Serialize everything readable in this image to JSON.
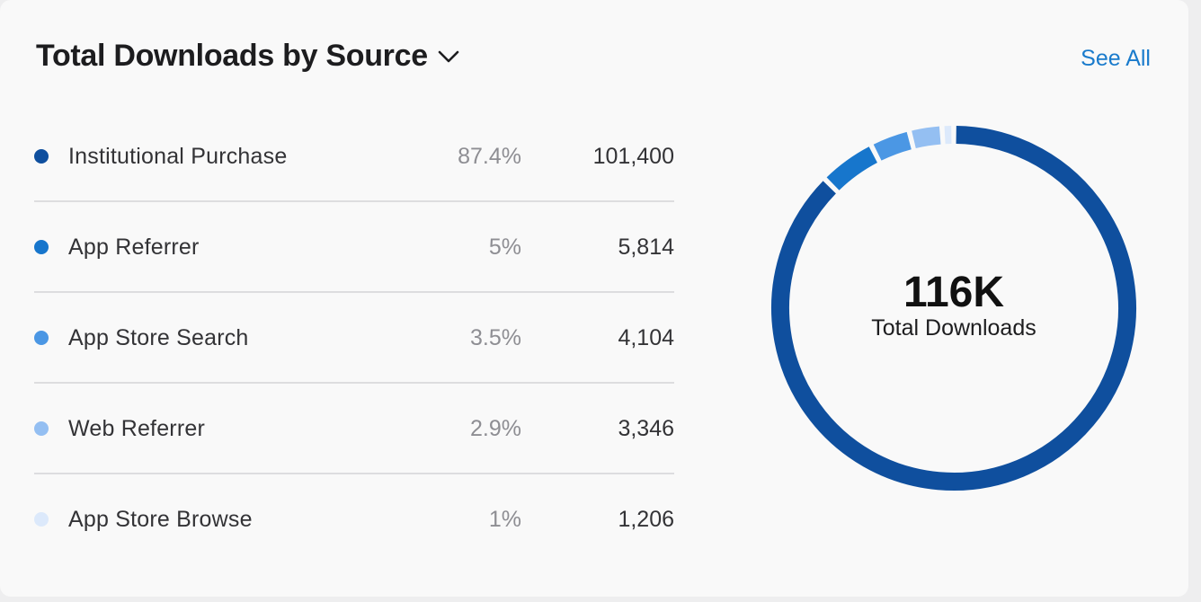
{
  "header": {
    "title": "Total Downloads by Source",
    "see_all": "See All"
  },
  "center": {
    "total": "116K",
    "label": "Total Downloads"
  },
  "colors": {
    "accent": "#1a7bcc"
  },
  "chart_data": {
    "type": "pie",
    "title": "Total Downloads by Source",
    "center_value": "116K",
    "center_label": "Total Downloads",
    "categories": [
      "Institutional Purchase",
      "App Referrer",
      "App Store Search",
      "Web Referrer",
      "App Store Browse"
    ],
    "percent_labels": [
      "87.4%",
      "5%",
      "3.5%",
      "2.9%",
      "1%"
    ],
    "value_labels": [
      "101,400",
      "5,814",
      "4,104",
      "3,346",
      "1,206"
    ],
    "values": [
      101400,
      5814,
      4104,
      3346,
      1206
    ],
    "colors": [
      "#0f4f9e",
      "#1776cc",
      "#4b97e4",
      "#94bff2",
      "#dce9fb"
    ]
  }
}
